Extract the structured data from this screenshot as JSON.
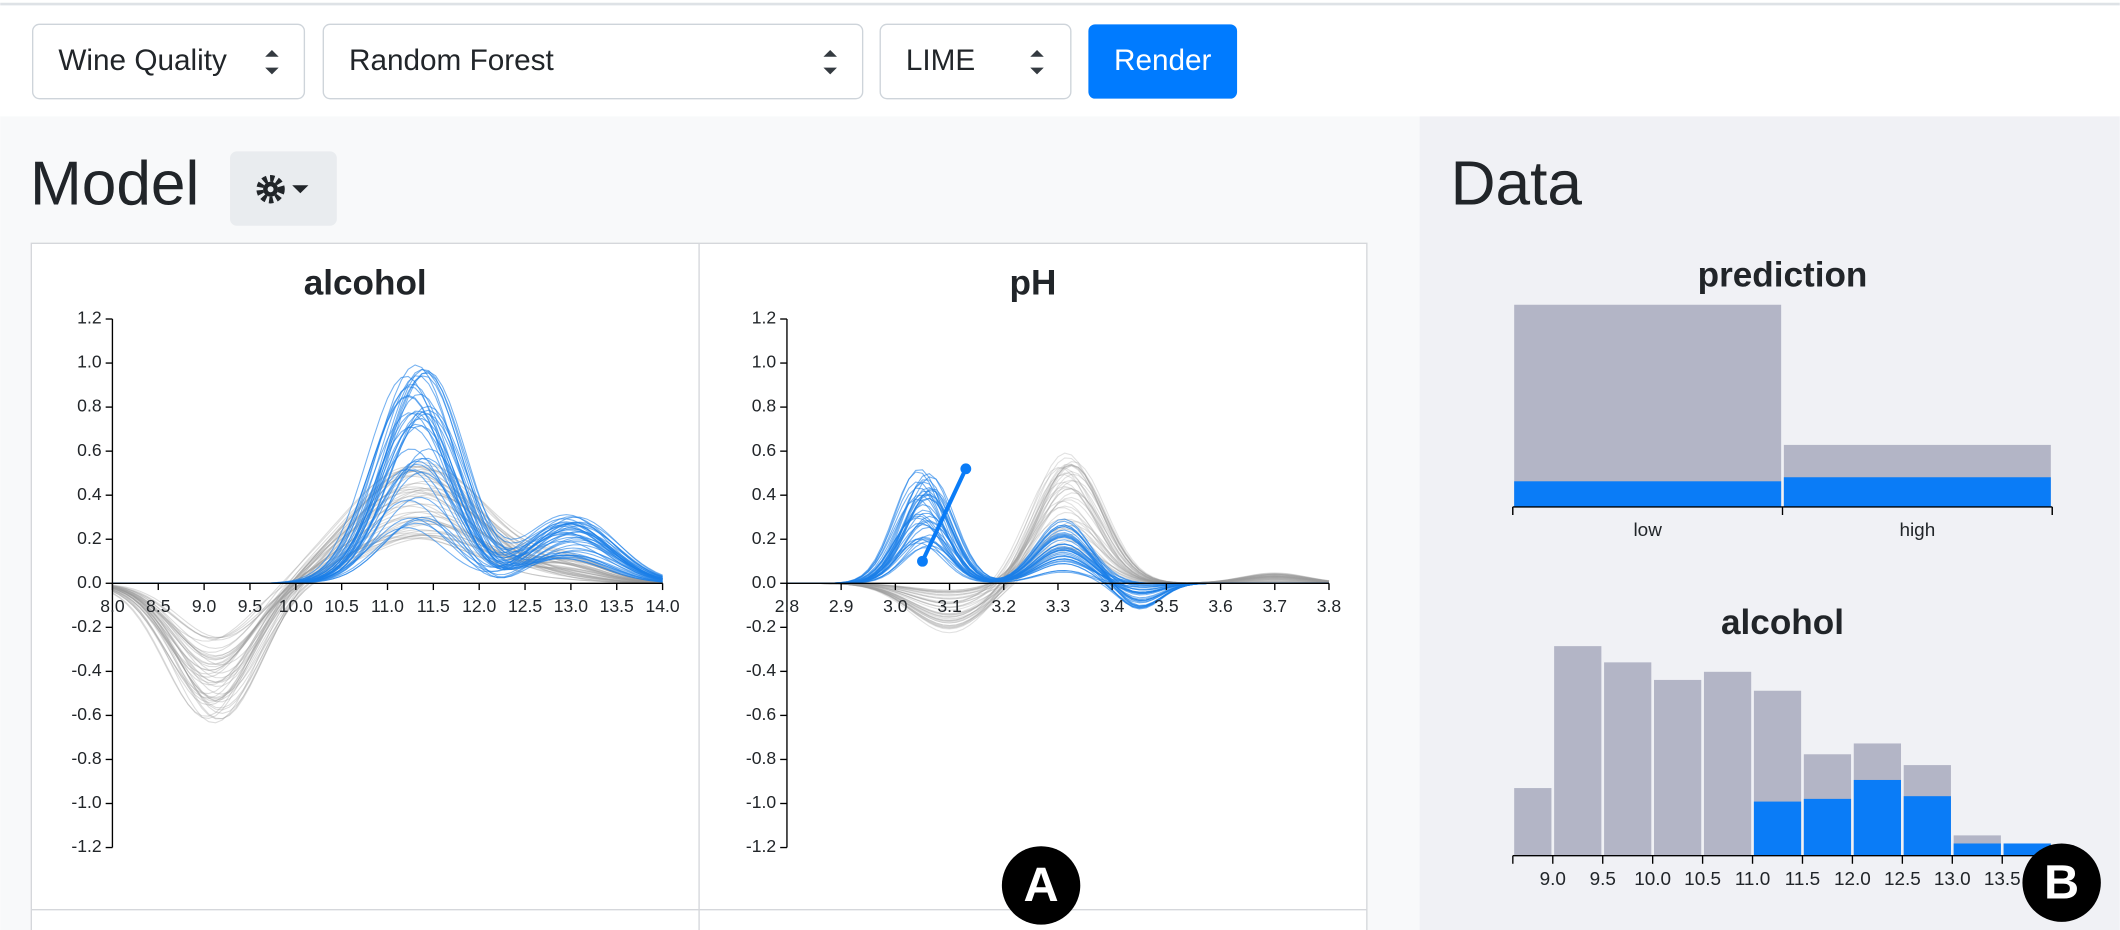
{
  "toolbar": {
    "dataset": "Wine Quality",
    "model": "Random Forest",
    "explainer": "LIME",
    "button": "Render"
  },
  "model_panel": {
    "heading": "Model",
    "charts": [
      {
        "type": "line",
        "title": "alcohol",
        "xlim": [
          8,
          14
        ],
        "xticks": [
          {
            "value": 8,
            "label": "8.0"
          },
          8.5,
          {
            "value": 9,
            "label": "9.0"
          },
          9.5,
          {
            "value": 10,
            "label": "10.0"
          },
          10.5,
          {
            "value": 11,
            "label": "11.0"
          },
          11.5,
          {
            "value": 12,
            "label": "12.0"
          },
          12.5,
          {
            "value": 13,
            "label": "13.0"
          },
          13.5,
          {
            "value": 14,
            "label": "14.0"
          }
        ],
        "ylim": [
          -1.2,
          1.2
        ],
        "yticks": [
          1.2,
          {
            "value": 1,
            "label": "1.0"
          },
          0.8,
          0.6,
          0.4,
          0.2,
          {
            "value": 0,
            "label": "0.0"
          },
          -0.2,
          -0.4,
          -0.6,
          -0.8,
          {
            "value": -1,
            "label": "-1.0"
          },
          -1.2
        ]
      },
      {
        "type": "line",
        "title": "pH",
        "xlim": [
          2.8,
          3.8
        ],
        "xticks": [
          2.8,
          2.9,
          {
            "value": 3,
            "label": "3.0"
          },
          3.1,
          3.2,
          3.3,
          3.4,
          3.5,
          3.6,
          3.7,
          3.8
        ],
        "ylim": [
          -1.2,
          1.2
        ],
        "yticks": [
          1.2,
          {
            "value": 1,
            "label": "1.0"
          },
          0.8,
          0.6,
          0.4,
          0.2,
          {
            "value": 0,
            "label": "0.0"
          },
          -0.2,
          -0.4,
          -0.6,
          -0.8,
          {
            "value": -1,
            "label": "-1.0"
          },
          -1.2
        ]
      }
    ]
  },
  "data_panel": {
    "heading": "Data",
    "charts": [
      {
        "type": "bar",
        "title": "prediction",
        "categories": [
          "low",
          "high"
        ],
        "series": [
          {
            "color": "#b3b5c6",
            "values": [
              150,
              46
            ]
          },
          {
            "color": "#0a7cf7",
            "values": [
              19,
              22
            ]
          }
        ]
      },
      {
        "type": "histogram",
        "title": "alcohol",
        "bins": [
          8.6,
          9,
          9.5,
          10,
          10.5,
          11,
          11.5,
          12,
          12.5,
          13,
          13.5,
          14
        ],
        "xlim": [
          8.6,
          14
        ],
        "xticks": [
          {
            "value": 9,
            "label": "9.0"
          },
          9.5,
          {
            "value": 10,
            "label": "10.0"
          },
          10.5,
          {
            "value": 11,
            "label": "11.0"
          },
          11.5,
          {
            "value": 12,
            "label": "12.0"
          },
          12.5,
          {
            "value": 13,
            "label": "13.0"
          },
          13.5
        ],
        "series": [
          {
            "color": "#b3b5c6",
            "values": [
              50,
              155,
              143,
              130,
              136,
              122,
              75,
              83,
              67,
              15,
              9
            ]
          },
          {
            "color": "#0a7cf7",
            "values": [
              0,
              0,
              0,
              0,
              0,
              40,
              42,
              56,
              44,
              9,
              9
            ]
          }
        ]
      }
    ]
  },
  "badges": [
    "A",
    "B"
  ]
}
